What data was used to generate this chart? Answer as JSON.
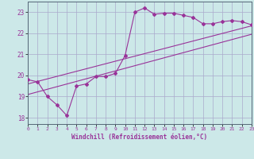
{
  "xlabel": "Windchill (Refroidissement éolien,°C)",
  "bg_color": "#cce8e8",
  "grid_color": "#aaaacc",
  "line_color": "#993399",
  "xmin": 0,
  "xmax": 23,
  "ymin": 17.7,
  "ymax": 23.5,
  "yticks": [
    18,
    19,
    20,
    21,
    22,
    23
  ],
  "xticks": [
    0,
    1,
    2,
    3,
    4,
    5,
    6,
    7,
    8,
    9,
    10,
    11,
    12,
    13,
    14,
    15,
    16,
    17,
    18,
    19,
    20,
    21,
    22,
    23
  ],
  "main_x": [
    0,
    1,
    2,
    3,
    4,
    5,
    6,
    7,
    8,
    9,
    10,
    11,
    12,
    13,
    14,
    15,
    16,
    17,
    18,
    19,
    20,
    21,
    22,
    23
  ],
  "main_y": [
    19.8,
    19.7,
    19.0,
    18.6,
    18.1,
    19.5,
    19.6,
    19.95,
    19.95,
    20.1,
    20.95,
    23.0,
    23.2,
    22.9,
    22.95,
    22.95,
    22.85,
    22.75,
    22.45,
    22.45,
    22.55,
    22.6,
    22.55,
    22.4
  ],
  "line2_x": [
    0,
    23
  ],
  "line2_y": [
    19.6,
    22.35
  ],
  "line3_x": [
    0,
    23
  ],
  "line3_y": [
    19.1,
    21.95
  ]
}
